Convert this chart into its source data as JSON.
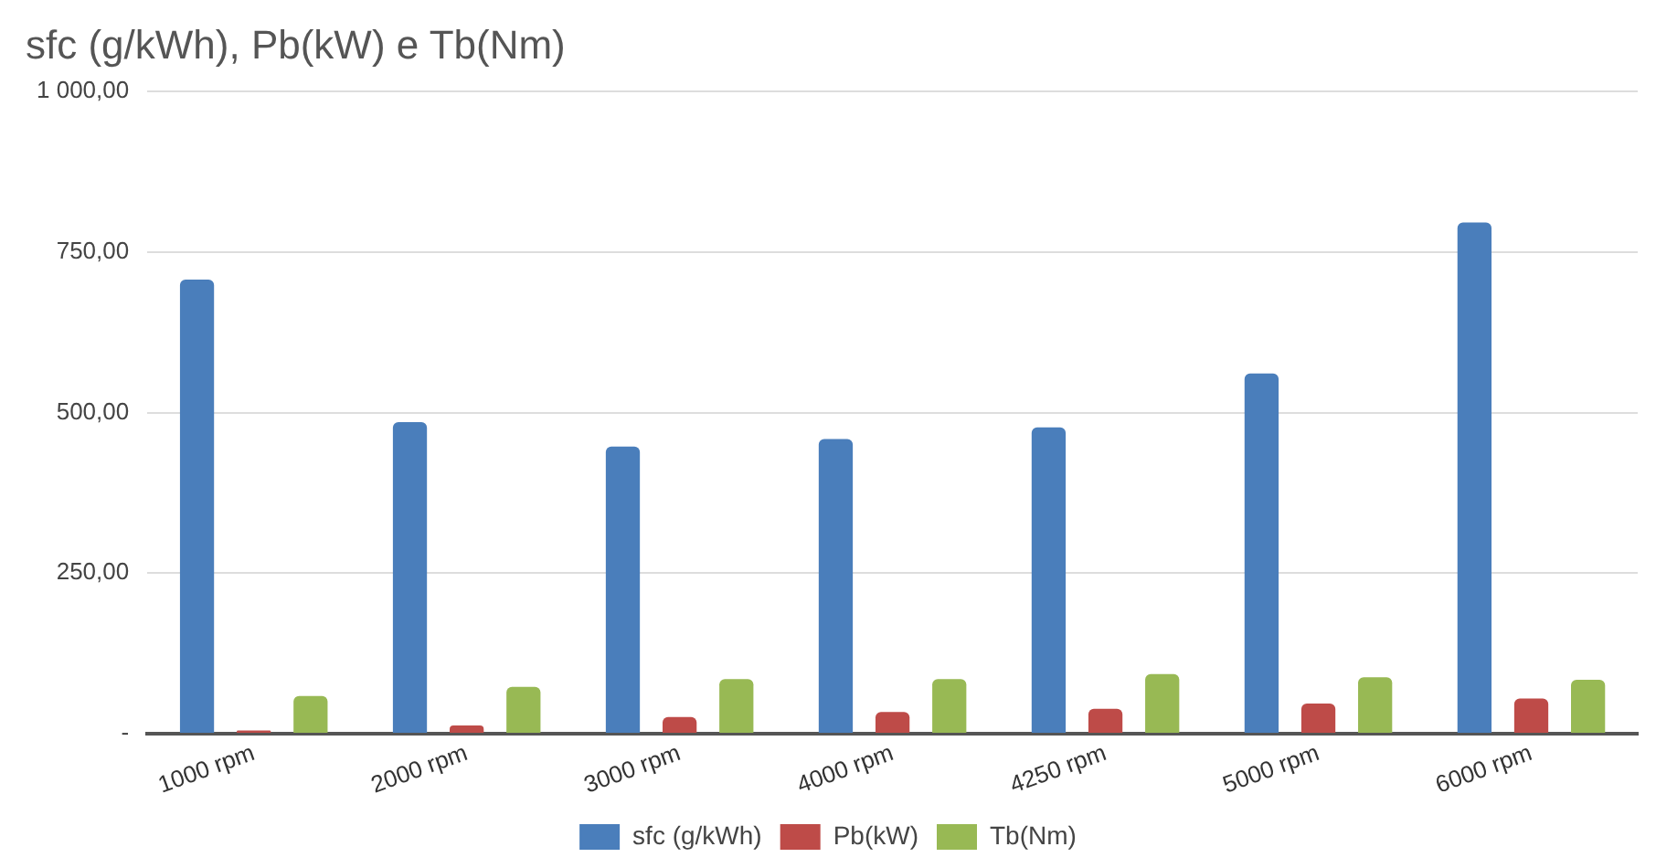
{
  "chart_data": {
    "type": "bar",
    "title": "sfc (g/kWh), Pb(kW) e Tb(Nm)",
    "categories": [
      "1000 rpm",
      "2000 rpm",
      "3000 rpm",
      "4000 rpm",
      "4250 rpm",
      "5000 rpm",
      "6000 rpm"
    ],
    "series": [
      {
        "name": "sfc (g/kWh)",
        "color": "#4a7ebb",
        "values": [
          707,
          485,
          447,
          459,
          477,
          561,
          796
        ]
      },
      {
        "name": "Pb(kW)",
        "color": "#be4b48",
        "values": [
          5,
          13,
          26,
          34,
          39,
          47,
          55
        ]
      },
      {
        "name": "Tb(Nm)",
        "color": "#98b954",
        "values": [
          59,
          73,
          85,
          85,
          93,
          88,
          84
        ]
      }
    ],
    "ylim": [
      0,
      1000
    ],
    "yticks": [
      {
        "value": 0,
        "label": "-"
      },
      {
        "value": 250,
        "label": "250,00"
      },
      {
        "value": 500,
        "label": "500,00"
      },
      {
        "value": 750,
        "label": "750,00"
      },
      {
        "value": 1000,
        "label": "1 000,00"
      }
    ],
    "grid": "y",
    "legend": "bottom"
  }
}
